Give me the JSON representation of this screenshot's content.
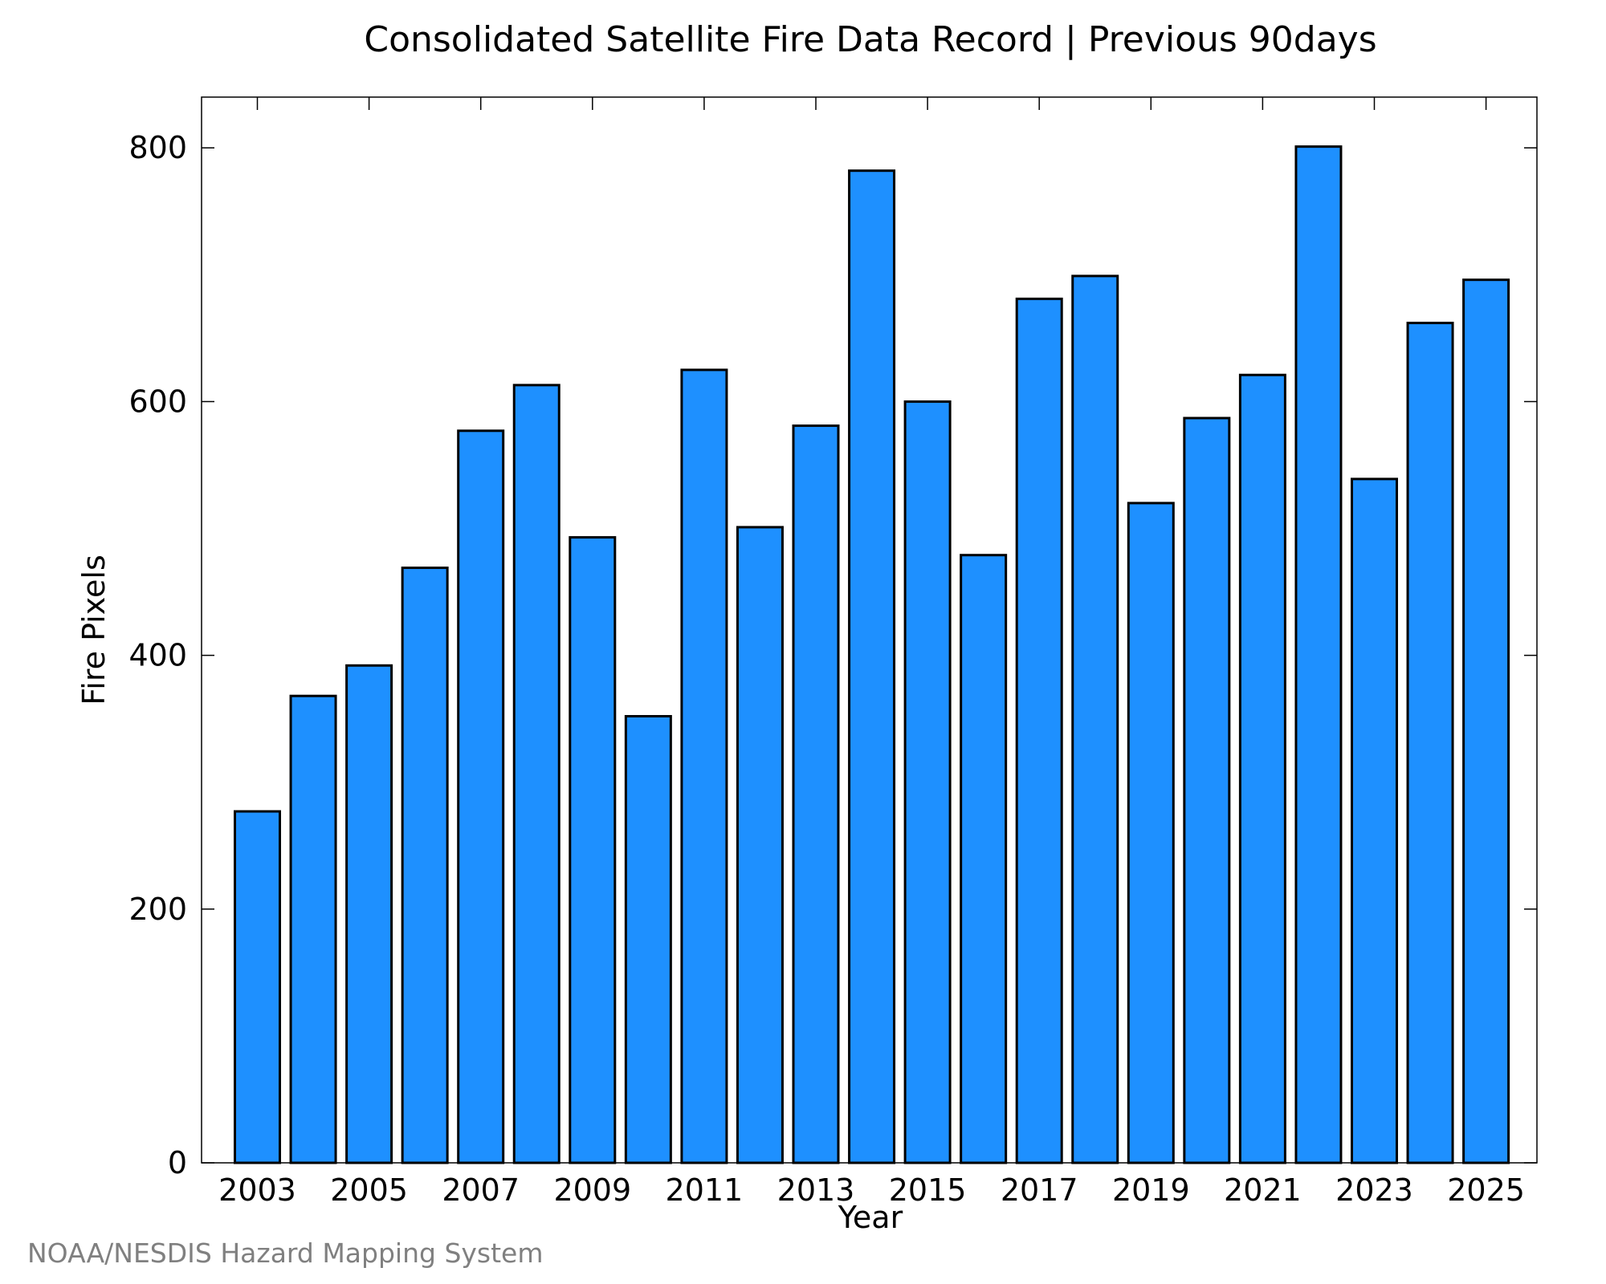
{
  "chart_data": {
    "type": "bar",
    "title": "Consolidated Satellite Fire Data Record | Previous 90days",
    "xlabel": "Year",
    "ylabel": "Fire Pixels",
    "categories": [
      "2003",
      "2004",
      "2005",
      "2006",
      "2007",
      "2008",
      "2009",
      "2010",
      "2011",
      "2012",
      "2013",
      "2014",
      "2015",
      "2016",
      "2017",
      "2018",
      "2019",
      "2020",
      "2021",
      "2022",
      "2023",
      "2024",
      "2025"
    ],
    "values": [
      277,
      368,
      392,
      469,
      577,
      613,
      493,
      352,
      625,
      501,
      581,
      782,
      600,
      479,
      681,
      699,
      520,
      587,
      621,
      801,
      539,
      662,
      696
    ],
    "x_tick_labels": [
      "2003",
      "2005",
      "2007",
      "2009",
      "2011",
      "2013",
      "2015",
      "2017",
      "2019",
      "2021",
      "2023",
      "2025"
    ],
    "y_tick_labels": [
      "0",
      "200",
      "400",
      "600",
      "800"
    ],
    "y_ticks": [
      0,
      200,
      400,
      600,
      800
    ],
    "ylim": [
      0,
      840
    ],
    "bar_color": "#1e90ff",
    "edge_color": "#000000",
    "grid": false,
    "credit": "NOAA/NESDIS Hazard Mapping System"
  }
}
